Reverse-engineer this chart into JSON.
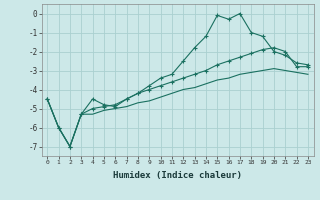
{
  "xlabel": "Humidex (Indice chaleur)",
  "ylabel": "",
  "xlim": [
    -0.5,
    23.5
  ],
  "ylim": [
    -7.5,
    0.5
  ],
  "background_color": "#cce8e8",
  "grid_color": "#aad0d0",
  "line_color": "#1a7060",
  "series1": [
    [
      0,
      -4.5
    ],
    [
      1,
      -6.0
    ],
    [
      2,
      -7.0
    ],
    [
      3,
      -5.3
    ],
    [
      4,
      -4.5
    ],
    [
      5,
      -4.8
    ],
    [
      6,
      -4.9
    ],
    [
      7,
      -4.5
    ],
    [
      8,
      -4.2
    ],
    [
      9,
      -3.8
    ],
    [
      10,
      -3.4
    ],
    [
      11,
      -3.2
    ],
    [
      12,
      -2.5
    ],
    [
      13,
      -1.8
    ],
    [
      14,
      -1.2
    ],
    [
      15,
      -0.1
    ],
    [
      16,
      -0.3
    ],
    [
      17,
      0.0
    ],
    [
      18,
      -1.0
    ],
    [
      19,
      -1.2
    ],
    [
      20,
      -2.0
    ],
    [
      21,
      -2.2
    ],
    [
      22,
      -2.6
    ],
    [
      23,
      -2.7
    ]
  ],
  "series2": [
    [
      0,
      -4.5
    ],
    [
      1,
      -6.0
    ],
    [
      2,
      -7.0
    ],
    [
      3,
      -5.3
    ],
    [
      4,
      -5.0
    ],
    [
      5,
      -4.9
    ],
    [
      6,
      -4.8
    ],
    [
      7,
      -4.5
    ],
    [
      8,
      -4.2
    ],
    [
      9,
      -4.0
    ],
    [
      10,
      -3.8
    ],
    [
      11,
      -3.6
    ],
    [
      12,
      -3.4
    ],
    [
      13,
      -3.2
    ],
    [
      14,
      -3.0
    ],
    [
      15,
      -2.7
    ],
    [
      16,
      -2.5
    ],
    [
      17,
      -2.3
    ],
    [
      18,
      -2.1
    ],
    [
      19,
      -1.9
    ],
    [
      20,
      -1.8
    ],
    [
      21,
      -2.0
    ],
    [
      22,
      -2.8
    ],
    [
      23,
      -2.8
    ]
  ],
  "series3": [
    [
      0,
      -4.5
    ],
    [
      1,
      -6.0
    ],
    [
      2,
      -7.0
    ],
    [
      3,
      -5.3
    ],
    [
      4,
      -5.3
    ],
    [
      5,
      -5.1
    ],
    [
      6,
      -5.0
    ],
    [
      7,
      -4.9
    ],
    [
      8,
      -4.7
    ],
    [
      9,
      -4.6
    ],
    [
      10,
      -4.4
    ],
    [
      11,
      -4.2
    ],
    [
      12,
      -4.0
    ],
    [
      13,
      -3.9
    ],
    [
      14,
      -3.7
    ],
    [
      15,
      -3.5
    ],
    [
      16,
      -3.4
    ],
    [
      17,
      -3.2
    ],
    [
      18,
      -3.1
    ],
    [
      19,
      -3.0
    ],
    [
      20,
      -2.9
    ],
    [
      21,
      -3.0
    ],
    [
      22,
      -3.1
    ],
    [
      23,
      -3.2
    ]
  ],
  "yticks": [
    0,
    -1,
    -2,
    -3,
    -4,
    -5,
    -6,
    -7
  ],
  "xticks": [
    0,
    1,
    2,
    3,
    4,
    5,
    6,
    7,
    8,
    9,
    10,
    11,
    12,
    13,
    14,
    15,
    16,
    17,
    18,
    19,
    20,
    21,
    22,
    23
  ]
}
